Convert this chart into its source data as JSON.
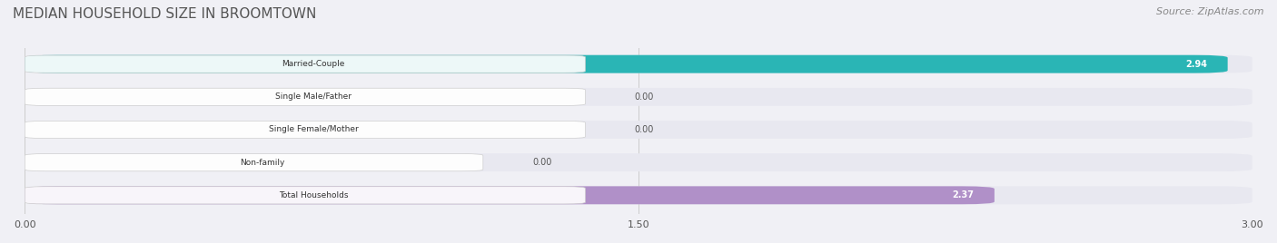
{
  "title": "MEDIAN HOUSEHOLD SIZE IN BROOMTOWN",
  "source": "Source: ZipAtlas.com",
  "categories": [
    "Married-Couple",
    "Single Male/Father",
    "Single Female/Mother",
    "Non-family",
    "Total Households"
  ],
  "values": [
    2.94,
    0.0,
    0.0,
    0.0,
    2.37
  ],
  "bar_colors": [
    "#2ab5b5",
    "#a0b4e0",
    "#f0a0b0",
    "#f5d0a0",
    "#b090c8"
  ],
  "label_bg_color": "#ffffff",
  "xlim": [
    0,
    3.0
  ],
  "xticks": [
    0.0,
    1.5,
    3.0
  ],
  "xtick_labels": [
    "0.00",
    "1.50",
    "3.00"
  ],
  "title_fontsize": 11,
  "source_fontsize": 8,
  "bar_height": 0.55,
  "background_color": "#f0f0f5",
  "bar_bg_color": "#e8e8f0",
  "value_label_color_inside": "#ffffff",
  "value_label_color_outside": "#555555"
}
